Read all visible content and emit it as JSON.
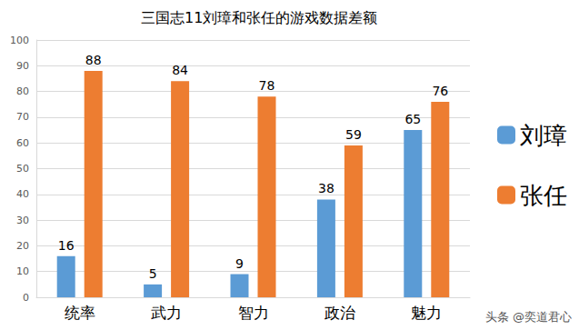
{
  "chart_data": {
    "type": "bar",
    "title": "三国志11刘璋和张任的游戏数据差额",
    "categories": [
      "统率",
      "武力",
      "智力",
      "政治",
      "魅力"
    ],
    "series": [
      {
        "name": "刘璋",
        "color": "#5b9bd5",
        "values": [
          16,
          5,
          9,
          38,
          65
        ]
      },
      {
        "name": "张任",
        "color": "#ed7d31",
        "values": [
          88,
          84,
          78,
          59,
          76
        ]
      }
    ],
    "ylim": [
      0,
      100
    ],
    "yticks": [
      0,
      10,
      20,
      30,
      40,
      50,
      60,
      70,
      80,
      90,
      100
    ],
    "grid": true,
    "data_labels": true,
    "legend": "right",
    "annotations": [
      "头条 @奕道君心"
    ]
  }
}
